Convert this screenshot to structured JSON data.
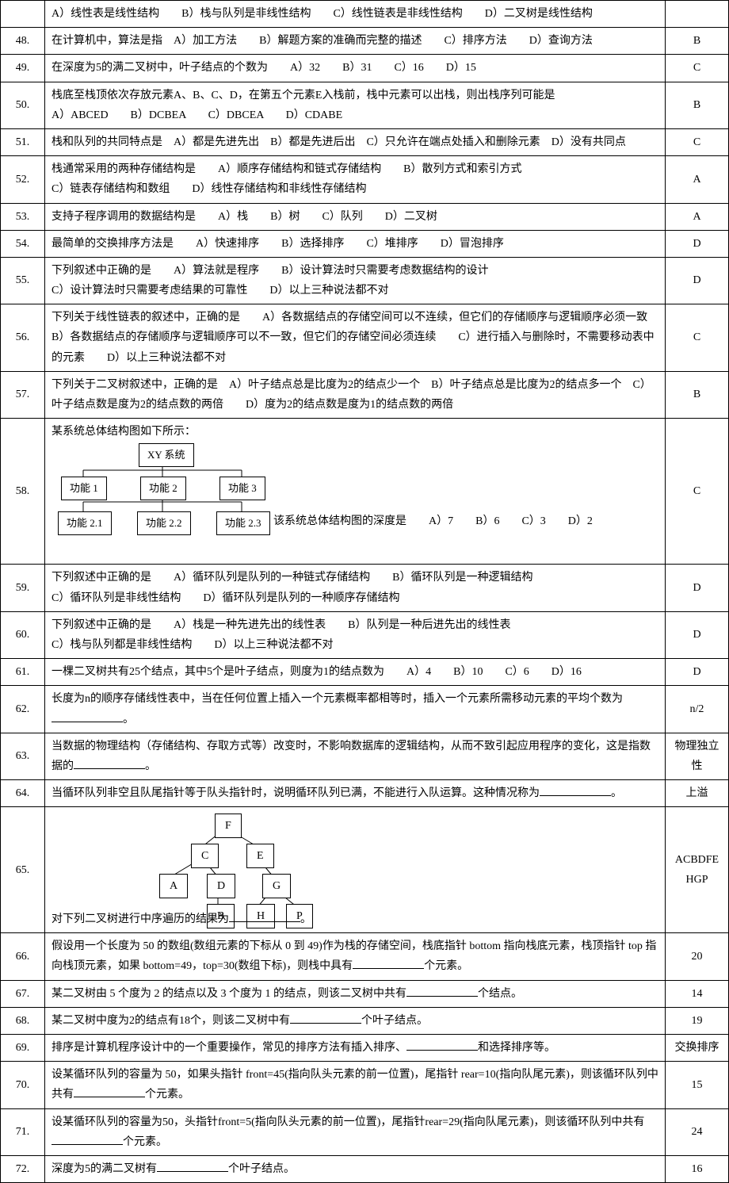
{
  "rows": [
    {
      "n": "",
      "ans": "",
      "q": "A）线性表是线性结构　　B）栈与队列是非线性结构　　C）线性链表是非线性结构　　D）二叉树是线性结构"
    },
    {
      "n": "48.",
      "ans": "B",
      "q": "在计算机中，算法是指　A）加工方法　　B）解题方案的准确而完整的描述　　C）排序方法　　D）查询方法"
    },
    {
      "n": "49.",
      "ans": "C",
      "q": "在深度为5的满二叉树中，叶子结点的个数为　　A）32　　B）31　　C）16　　D）15"
    },
    {
      "n": "50.",
      "ans": "B",
      "q": "栈底至栈顶依次存放元素A、B、C、D，在第五个元素E入栈前，栈中元素可以出栈，则出栈序列可能是<br>A）ABCED　　B）DCBEA　　C）DBCEA　　D）CDABE"
    },
    {
      "n": "51.",
      "ans": "C",
      "q": "栈和队列的共同特点是　A）都是先进先出　B）都是先进后出　C）只允许在端点处插入和删除元素　D）没有共同点"
    },
    {
      "n": "52.",
      "ans": "A",
      "q": "栈通常采用的两种存储结构是　　A）顺序存储结构和链式存储结构　　B）散列方式和索引方式<br>C）链表存储结构和数组　　D）线性存储结构和非线性存储结构"
    },
    {
      "n": "53.",
      "ans": "A",
      "q": "支持子程序调用的数据结构是　　A）栈　　B）树　　C）队列　　D）二叉树"
    },
    {
      "n": "54.",
      "ans": "D",
      "q": "最简单的交换排序方法是　　A）快速排序　　B）选择排序　　C）堆排序　　D）冒泡排序"
    },
    {
      "n": "55.",
      "ans": "D",
      "q": "下列叙述中正确的是　　A）算法就是程序　　B）设计算法时只需要考虑数据结构的设计<br>C）设计算法时只需要考虑结果的可靠性　　D）以上三种说法都不对"
    },
    {
      "n": "56.",
      "ans": "C",
      "q": "下列关于线性链表的叙述中，正确的是　　A）各数据结点的存储空间可以不连续，但它们的存储顺序与逻辑顺序必须一致　　B）各数据结点的存储顺序与逻辑顺序可以不一致，但它们的存储空间必须连续　　C）进行插入与删除时，不需要移动表中的元素　　D）以上三种说法都不对"
    },
    {
      "n": "57.",
      "ans": "B",
      "q": "下列关于二叉树叙述中，正确的是　A）叶子结点总是比度为2的结点少一个　B）叶子结点总是比度为2的结点多一个　C）叶子结点数是度为2的结点数的两倍　　D）度为2的结点数是度为1的结点数的两倍"
    },
    {
      "n": "58.",
      "ans": "C",
      "q": "__DIAGRAM58__"
    },
    {
      "n": "59.",
      "ans": "D",
      "q": "下列叙述中正确的是　　A）循环队列是队列的一种链式存储结构　　B）循环队列是一种逻辑结构<br>C）循环队列是非线性结构　　D）循环队列是队列的一种顺序存储结构"
    },
    {
      "n": "60.",
      "ans": "D",
      "q": "下列叙述中正确的是　　A）栈是一种先进先出的线性表　　B）队列是一种后进先出的线性表<br>C）栈与队列都是非线性结构　　D）以上三种说法都不对"
    },
    {
      "n": "61.",
      "ans": "D",
      "q": "一棵二叉树共有25个结点，其中5个是叶子结点，则度为1的结点数为　　A）4　　B）10　　C）6　　D）16"
    },
    {
      "n": "62.",
      "ans": "n/2",
      "q": "长度为n的顺序存储线性表中，当在任何位置上插入一个元素概率都相等时，插入一个元素所需移动元素的平均个数为<span class=\"blank\"></span>。"
    },
    {
      "n": "63.",
      "ans": "物理独立性",
      "q": "当数据的物理结构（存储结构、存取方式等）改变时，不影响数据库的逻辑结构，从而不致引起应用程序的变化，这是指数据的<span class=\"blank\"></span>。"
    },
    {
      "n": "64.",
      "ans": "上溢",
      "q": "当循环队列非空且队尾指针等于队头指针时，说明循环队列已满，不能进行入队运算。这种情况称为<span class=\"blank\"></span>。"
    },
    {
      "n": "65.",
      "ans": "ACBDFEHGP",
      "q": "__DIAGRAM65__"
    },
    {
      "n": "66.",
      "ans": "20",
      "q": "假设用一个长度为 50 的数组(数组元素的下标从 0 到 49)作为栈的存储空间，栈底指针 bottom 指向栈底元素，栈顶指针 top 指向栈顶元素，如果 bottom=49，top=30(数组下标)，则栈中具有<span class=\"blank\"></span>个元素。"
    },
    {
      "n": "67.",
      "ans": "14",
      "q": "某二叉树由 5 个度为 2 的结点以及 3 个度为 1 的结点，则该二叉树中共有<span class=\"blank\"></span>个结点。"
    },
    {
      "n": "68.",
      "ans": "19",
      "q": "某二叉树中度为2的结点有18个，则该二叉树中有<span class=\"blank\"></span>个叶子结点。"
    },
    {
      "n": "69.",
      "ans": "交换排序",
      "q": "排序是计算机程序设计中的一个重要操作，常见的排序方法有插入排序、<span class=\"blank\"></span>和选择排序等。"
    },
    {
      "n": "70.",
      "ans": "15",
      "q": "设某循环队列的容量为 50，如果头指针 front=45(指向队头元素的前一位置)，尾指针 rear=10(指向队尾元素)，则该循环队列中共有<span class=\"blank\"></span>个元素。"
    },
    {
      "n": "71.",
      "ans": "24",
      "q": "设某循环队列的容量为50，头指针front=5(指向队头元素的前一位置)，尾指针rear=29(指向队尾元素)，则该循环队列中共有<span class=\"blank\"></span>个元素。"
    },
    {
      "n": "72.",
      "ans": "16",
      "q": "深度为5的满二叉树有<span class=\"blank\"></span>个叶子结点。"
    }
  ],
  "diagram58": {
    "intro": "某系统总体结构图如下所示：",
    "root": "XY 系统",
    "level1": [
      "功能 1",
      "功能 2",
      "功能 3"
    ],
    "level2": [
      "功能 2.1",
      "功能 2.2",
      "功能 2.3"
    ],
    "tail": "该系统总体结构图的深度是　　A）7　　B）6　　C）3　　D）2"
  },
  "diagram65": {
    "nodes": {
      "root": "F",
      "l": "C",
      "r": "E",
      "ll": "A",
      "lr": "D",
      "rr": "G",
      "lrr": "B",
      "rrl": "H",
      "rrr": "P"
    },
    "tail": "对下列二叉树进行中序遍历的结果为",
    "tail2": "。"
  }
}
